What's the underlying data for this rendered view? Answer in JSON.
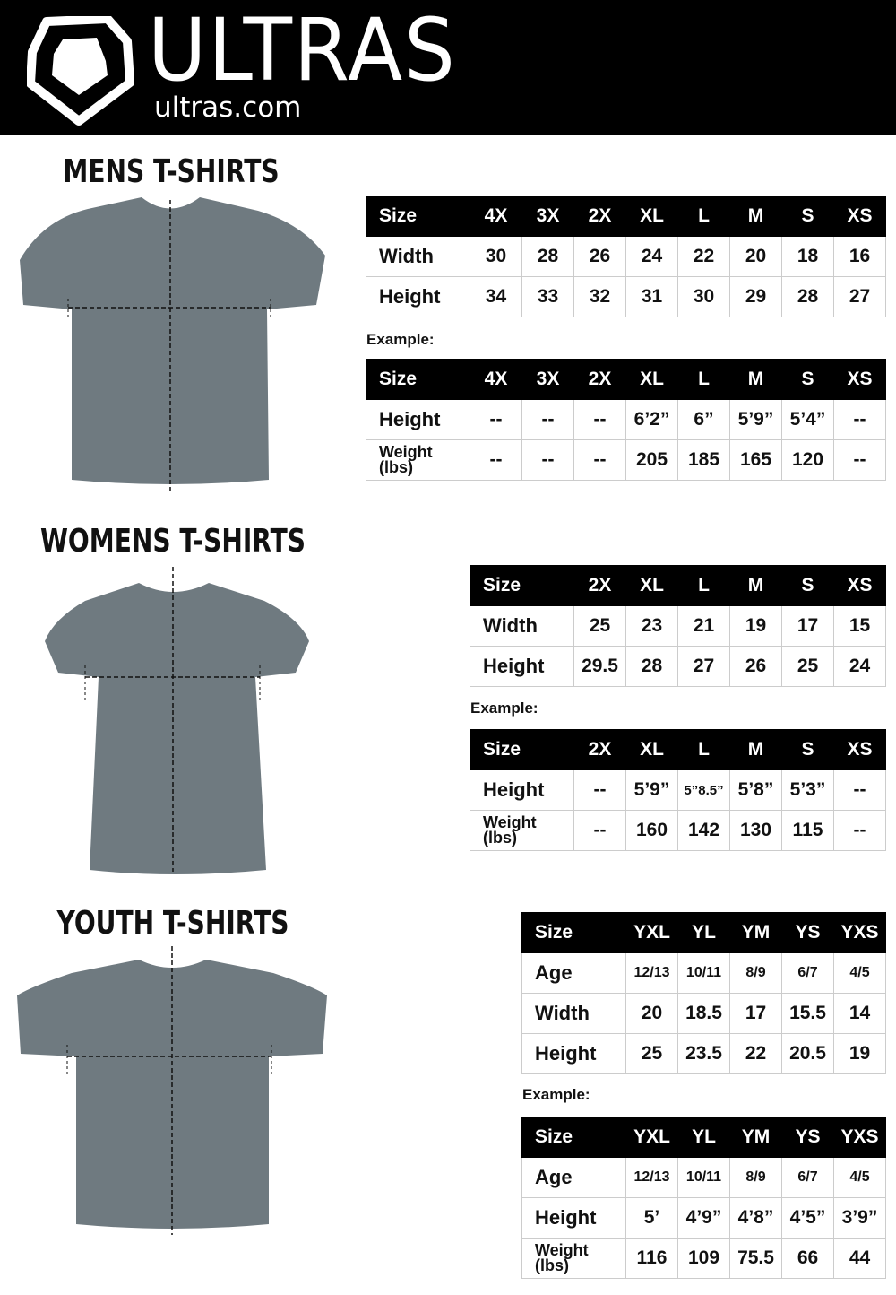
{
  "header": {
    "brand": "ULTRAS",
    "url": "ultras.com",
    "background": "#000000"
  },
  "example_label": "Example:",
  "sections": [
    {
      "title": "MENS T-SHIRTS",
      "measure_table": [
        [
          "Size",
          "4X",
          "3X",
          "2X",
          "XL",
          "L",
          "M",
          "S",
          "XS"
        ],
        [
          "Width",
          "30",
          "28",
          "26",
          "24",
          "22",
          "20",
          "18",
          "16"
        ],
        [
          "Height",
          "34",
          "33",
          "32",
          "31",
          "30",
          "29",
          "28",
          "27"
        ]
      ],
      "example_table": [
        [
          "Size",
          "4X",
          "3X",
          "2X",
          "XL",
          "L",
          "M",
          "S",
          "XS"
        ],
        [
          "Height",
          "--",
          "--",
          "--",
          "6’2”",
          "6”",
          "5’9”",
          "5’4”",
          "--"
        ],
        [
          "Weight (lbs)",
          "--",
          "--",
          "--",
          "205",
          "185",
          "165",
          "120",
          "--"
        ]
      ]
    },
    {
      "title": "WOMENS T-SHIRTS",
      "measure_table": [
        [
          "Size",
          "2X",
          "XL",
          "L",
          "M",
          "S",
          "XS"
        ],
        [
          "Width",
          "25",
          "23",
          "21",
          "19",
          "17",
          "15"
        ],
        [
          "Height",
          "29.5",
          "28",
          "27",
          "26",
          "25",
          "24"
        ]
      ],
      "example_table": [
        [
          "Size",
          "2X",
          "XL",
          "L",
          "M",
          "S",
          "XS"
        ],
        [
          "Height",
          "--",
          "5’9”",
          "5”8.5”",
          "5’8”",
          "5’3”",
          "--"
        ],
        [
          "Weight (lbs)",
          "--",
          "160",
          "142",
          "130",
          "115",
          "--"
        ]
      ]
    },
    {
      "title": "YOUTH T-SHIRTS",
      "measure_table": [
        [
          "Size",
          "YXL",
          "YL",
          "YM",
          "YS",
          "YXS"
        ],
        [
          "Age",
          "12/13",
          "10/11",
          "8/9",
          "6/7",
          "4/5"
        ],
        [
          "Width",
          "20",
          "18.5",
          "17",
          "15.5",
          "14"
        ],
        [
          "Height",
          "25",
          "23.5",
          "22",
          "20.5",
          "19"
        ]
      ],
      "example_table": [
        [
          "Size",
          "YXL",
          "YL",
          "YM",
          "YS",
          "YXS"
        ],
        [
          "Age",
          "12/13",
          "10/11",
          "8/9",
          "6/7",
          "4/5"
        ],
        [
          "Height",
          "5’",
          "4’9”",
          "4’8”",
          "4’5”",
          "3’9”"
        ],
        [
          "Weight (lbs)",
          "116",
          "109",
          "75.5",
          "66",
          "44"
        ]
      ]
    }
  ]
}
